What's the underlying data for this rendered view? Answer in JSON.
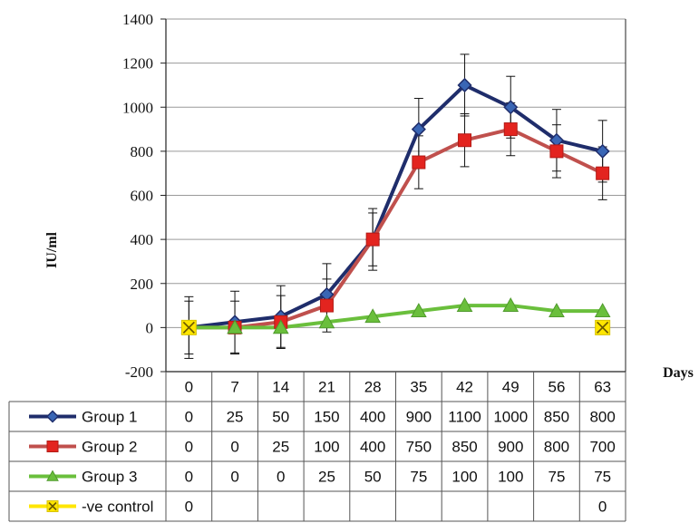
{
  "chart_data": {
    "type": "line",
    "title": "",
    "xlabel": "Days",
    "ylabel": "IU/ml",
    "ylim": [
      -200,
      1400
    ],
    "yticks": [
      -200,
      0,
      200,
      400,
      600,
      800,
      1000,
      1200,
      1400
    ],
    "yticks_labels": [
      "-200",
      "0",
      "200",
      "400",
      "600",
      "800",
      "1000",
      "1200",
      "1400"
    ],
    "grid": true,
    "legend": "data-table-below",
    "categories": [
      "0",
      "7",
      "14",
      "21",
      "28",
      "35",
      "42",
      "49",
      "56",
      "63"
    ],
    "series": [
      {
        "name": "Group 1",
        "color": "#1f2d6b",
        "marker": "diamond",
        "values": [
          0,
          25,
          50,
          150,
          400,
          900,
          1100,
          1000,
          850,
          800
        ],
        "error": [
          140,
          140,
          140,
          140,
          140,
          140,
          140,
          140,
          140,
          140
        ],
        "labels": [
          "0",
          "25",
          "50",
          "150",
          "400",
          "900",
          "1100",
          "1000",
          "850",
          "800"
        ]
      },
      {
        "name": "Group 2",
        "color": "#c0504d",
        "marker": "square",
        "values": [
          0,
          0,
          25,
          100,
          400,
          750,
          850,
          900,
          800,
          700
        ],
        "error": [
          120,
          120,
          120,
          120,
          120,
          120,
          120,
          120,
          120,
          120
        ],
        "labels": [
          "0",
          "0",
          "25",
          "100",
          "400",
          "750",
          "850",
          "900",
          "800",
          "700"
        ]
      },
      {
        "name": "Group 3",
        "color": "#6abf3c",
        "marker": "triangle",
        "values": [
          0,
          0,
          0,
          25,
          50,
          75,
          100,
          100,
          75,
          75
        ],
        "labels": [
          "0",
          "0",
          "0",
          "25",
          "50",
          "75",
          "100",
          "100",
          "75",
          "75"
        ]
      },
      {
        "name": "-ve control",
        "color": "#ffe600",
        "marker": "x",
        "values": [
          0,
          null,
          null,
          null,
          null,
          null,
          null,
          null,
          null,
          0
        ],
        "labels": [
          "0",
          "",
          "",
          "",
          "",
          "",
          "",
          "",
          "",
          "0"
        ]
      }
    ]
  }
}
